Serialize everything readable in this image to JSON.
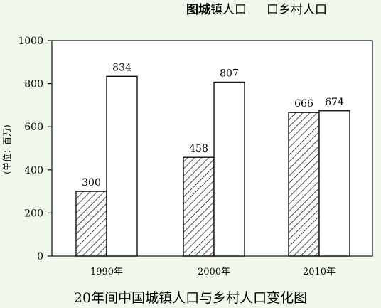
{
  "legend": {
    "prefix": "图",
    "hilite": "城",
    "urban": "镇人口",
    "rural": "口乡村人口"
  },
  "caption": "20年间中国城镇人口与乡村人口变化图",
  "chart_data": {
    "type": "bar",
    "categories": [
      "1990年",
      "2000年",
      "2010年"
    ],
    "series": [
      {
        "name": "城镇人口",
        "values": [
          300,
          458,
          666
        ],
        "pattern": "hatched"
      },
      {
        "name": "乡村人口",
        "values": [
          834,
          807,
          674
        ],
        "pattern": "blank"
      }
    ],
    "ylabel": "(单位：百万)",
    "ylim": [
      0,
      1000
    ],
    "yticks": [
      0,
      200,
      400,
      600,
      800,
      1000
    ],
    "grid": false
  },
  "colors": {
    "background": "#f1f8ec",
    "plot_background": "#ffffff",
    "bar_stroke": "#111111",
    "hatch": "#222222"
  }
}
